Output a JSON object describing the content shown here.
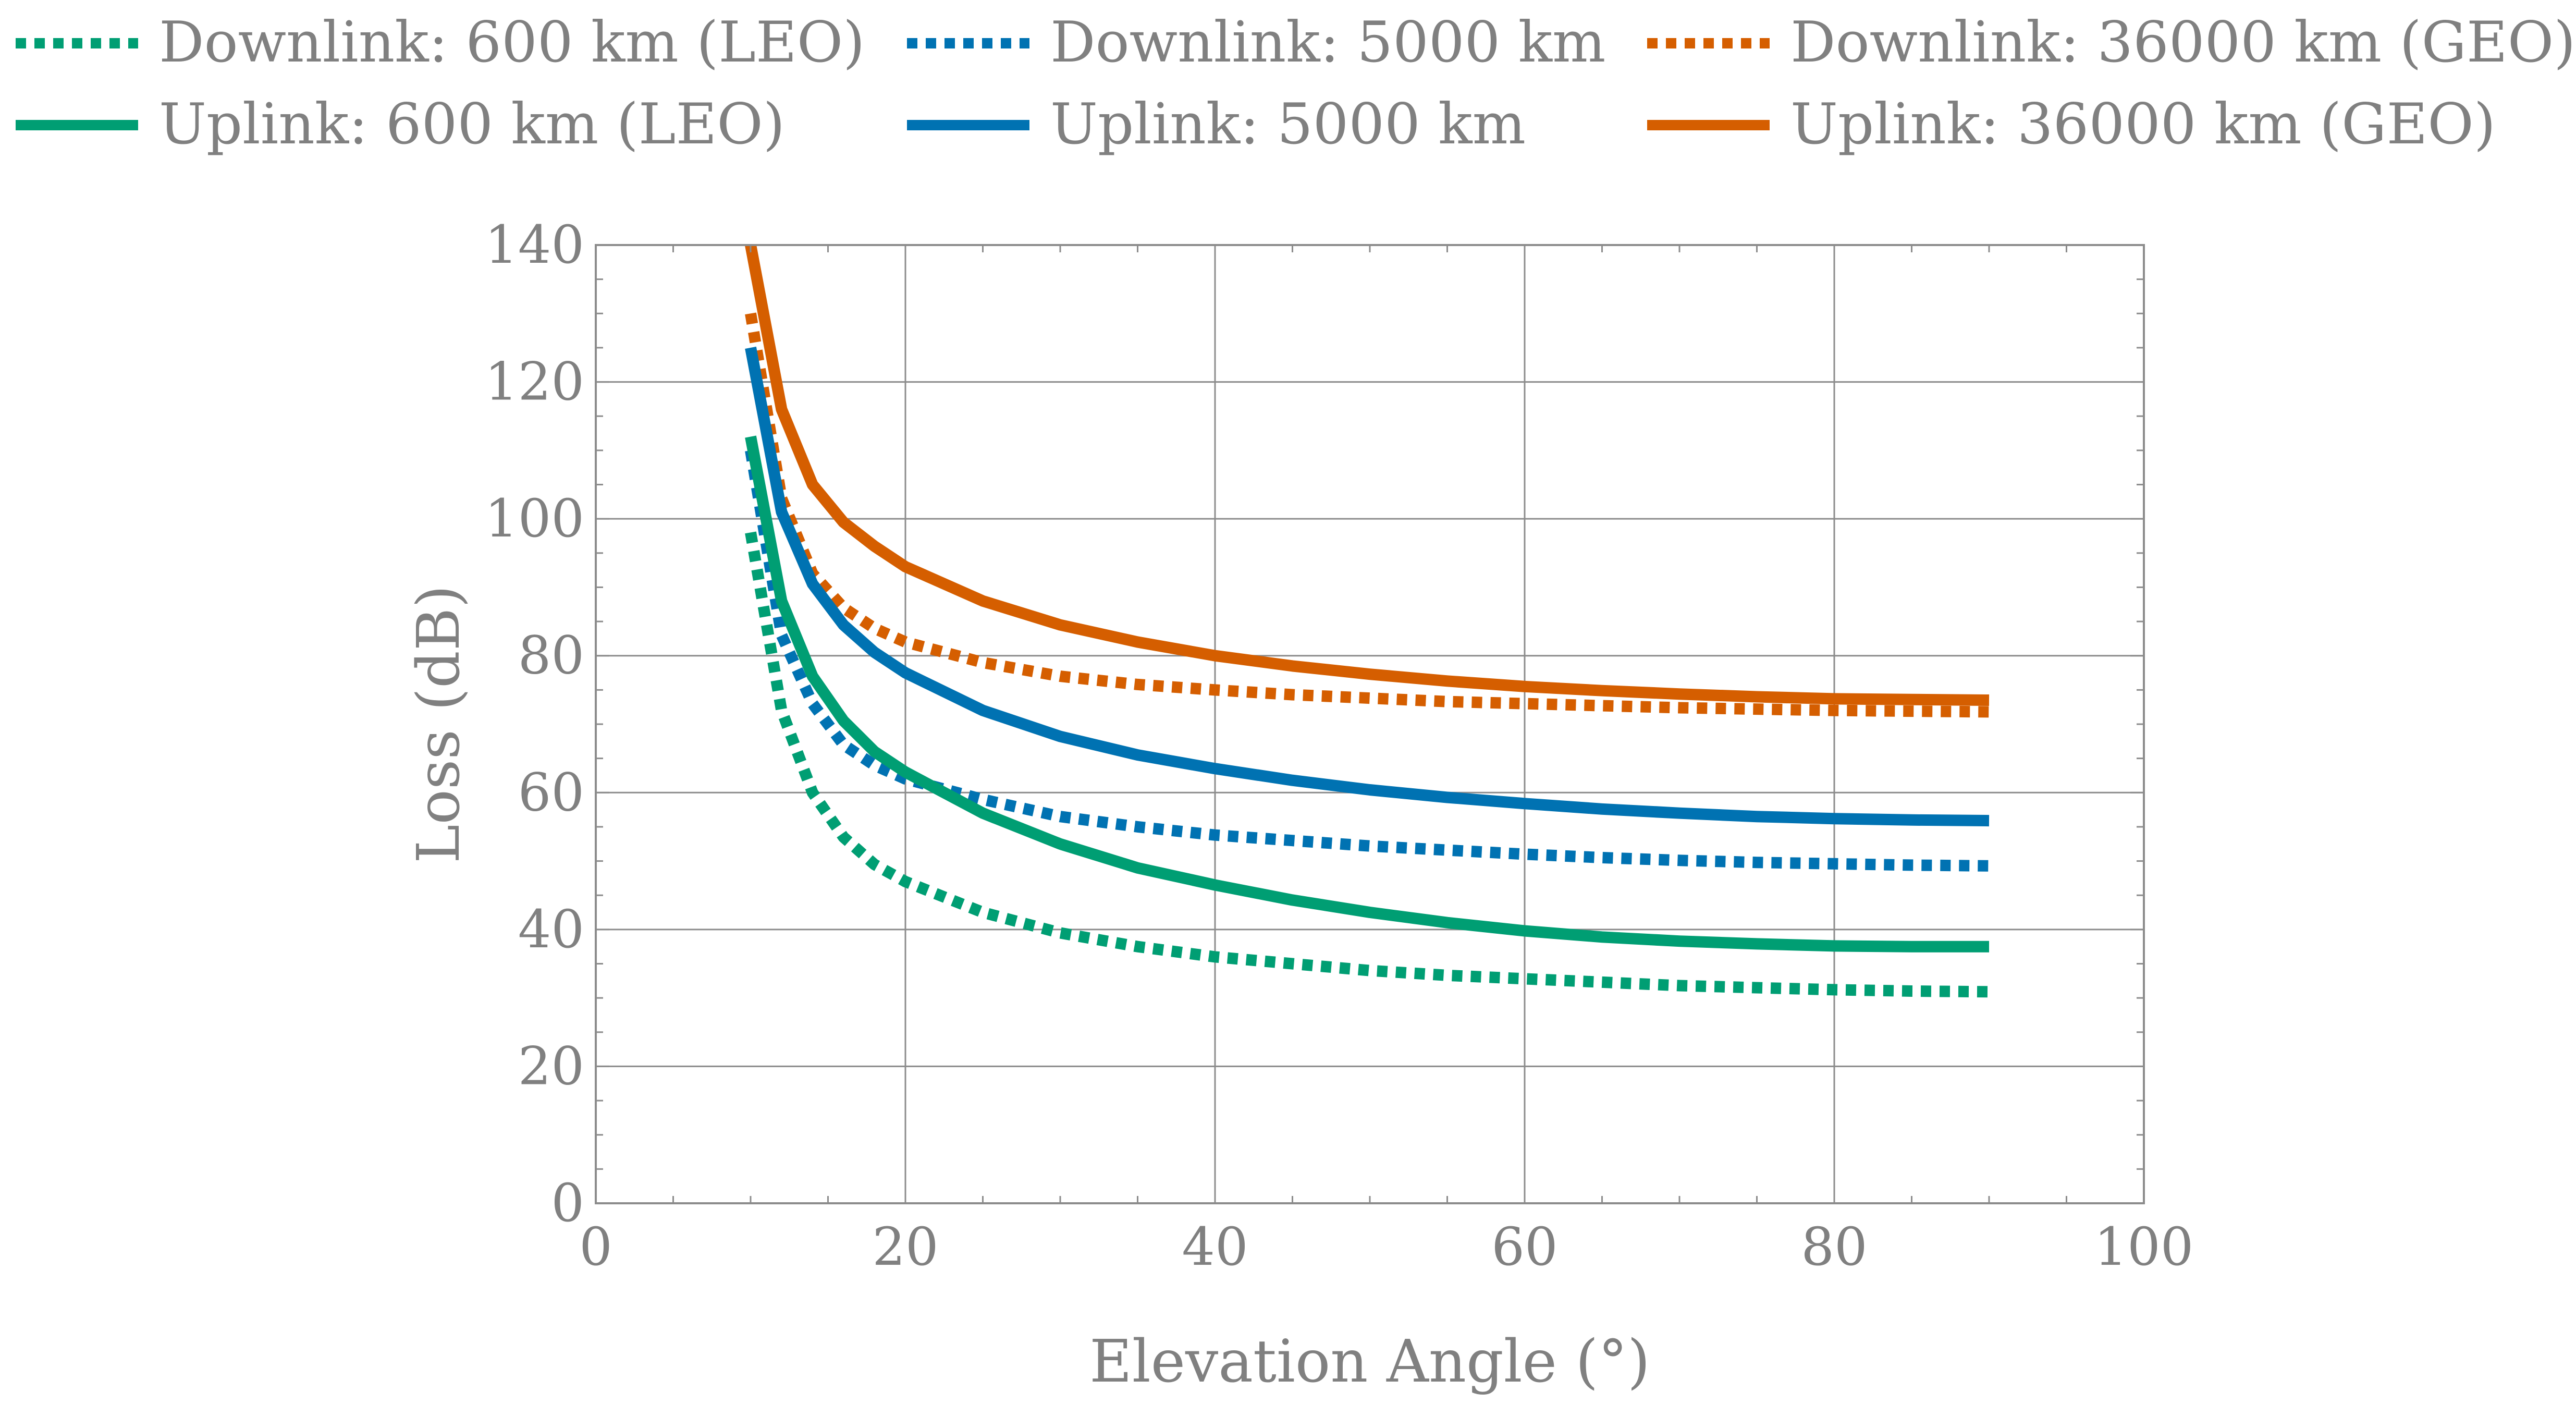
{
  "chart_data": {
    "type": "line",
    "title": "",
    "xlabel": "Elevation Angle (°)",
    "ylabel": "Loss (dB)",
    "xlim": [
      0,
      100
    ],
    "ylim": [
      0,
      140
    ],
    "xticks": [
      "0",
      "20",
      "40",
      "60",
      "80",
      "100"
    ],
    "yticks": [
      "0",
      "20",
      "40",
      "60",
      "80",
      "100",
      "120",
      "140"
    ],
    "grid": true,
    "legend_position": "top",
    "x": [
      10,
      12,
      14,
      16,
      18,
      20,
      25,
      30,
      35,
      40,
      45,
      50,
      55,
      60,
      65,
      70,
      75,
      80,
      85,
      90
    ],
    "series": [
      {
        "name": "Downlink: 600 km (LEO)",
        "style": "dotted",
        "color": "#009e73",
        "values": [
          98,
          72,
          60,
          53.5,
          49.5,
          47,
          42.5,
          39.5,
          37.5,
          36,
          35,
          34,
          33.3,
          32.8,
          32.3,
          31.8,
          31.5,
          31.2,
          31,
          30.9
        ]
      },
      {
        "name": "Downlink: 5000 km",
        "style": "dotted",
        "color": "#0072b2",
        "values": [
          110,
          83,
          73,
          67,
          64,
          62,
          59,
          56.5,
          55,
          53.8,
          53,
          52.2,
          51.6,
          51,
          50.5,
          50.1,
          49.8,
          49.6,
          49.4,
          49.3
        ]
      },
      {
        "name": "Downlink: 36000 km (GEO)",
        "style": "dotted",
        "color": "#d55e00",
        "values": [
          130,
          103,
          92,
          87,
          84,
          82,
          79,
          77,
          75.8,
          75,
          74.3,
          73.8,
          73.3,
          73,
          72.7,
          72.4,
          72.2,
          72,
          71.9,
          71.8
        ]
      },
      {
        "name": "Uplink: 600 km (LEO)",
        "style": "solid",
        "color": "#009e73",
        "values": [
          112,
          88,
          77,
          70.5,
          66,
          63,
          57,
          52.5,
          49,
          46.5,
          44.3,
          42.5,
          41,
          39.8,
          38.9,
          38.3,
          37.9,
          37.6,
          37.5,
          37.5
        ]
      },
      {
        "name": "Uplink: 5000 km",
        "style": "solid",
        "color": "#0072b2",
        "values": [
          125,
          101,
          90.5,
          84.5,
          80.5,
          77.5,
          72,
          68.2,
          65.5,
          63.5,
          61.8,
          60.4,
          59.3,
          58.4,
          57.6,
          57,
          56.5,
          56.2,
          56,
          55.9
        ]
      },
      {
        "name": "Uplink: 36000 km (GEO)",
        "style": "solid",
        "color": "#d55e00",
        "values": [
          140,
          116,
          105,
          99.5,
          96,
          93,
          88,
          84.5,
          82,
          80,
          78.5,
          77.3,
          76.3,
          75.5,
          74.9,
          74.4,
          74,
          73.7,
          73.6,
          73.5
        ]
      }
    ]
  }
}
